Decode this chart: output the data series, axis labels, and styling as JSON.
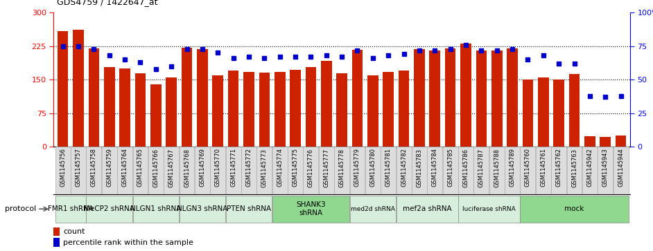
{
  "title": "GDS4759 / 1422647_at",
  "samples": [
    "GSM1145756",
    "GSM1145757",
    "GSM1145758",
    "GSM1145759",
    "GSM1145764",
    "GSM1145765",
    "GSM1145766",
    "GSM1145767",
    "GSM1145768",
    "GSM1145769",
    "GSM1145770",
    "GSM1145771",
    "GSM1145772",
    "GSM1145773",
    "GSM1145774",
    "GSM1145775",
    "GSM1145776",
    "GSM1145777",
    "GSM1145778",
    "GSM1145779",
    "GSM1145780",
    "GSM1145781",
    "GSM1145782",
    "GSM1145783",
    "GSM1145784",
    "GSM1145785",
    "GSM1145786",
    "GSM1145787",
    "GSM1145788",
    "GSM1145789",
    "GSM1145760",
    "GSM1145761",
    "GSM1145762",
    "GSM1145763",
    "GSM1145942",
    "GSM1145943",
    "GSM1145944"
  ],
  "counts": [
    258,
    262,
    220,
    178,
    175,
    165,
    140,
    155,
    222,
    218,
    160,
    170,
    167,
    166,
    167,
    172,
    178,
    192,
    165,
    217,
    160,
    168,
    170,
    218,
    216,
    220,
    230,
    215,
    215,
    220,
    150,
    155,
    150,
    163,
    23,
    22,
    25
  ],
  "percentiles": [
    75,
    75,
    73,
    68,
    65,
    63,
    58,
    60,
    73,
    73,
    70,
    66,
    67,
    66,
    67,
    67,
    67,
    68,
    67,
    72,
    66,
    68,
    69,
    72,
    72,
    73,
    76,
    72,
    72,
    73,
    65,
    68,
    62,
    62,
    38,
    37,
    38
  ],
  "groups": [
    {
      "label": "FMR1 shRNA",
      "start": 0,
      "end": 2,
      "color": "#d8eedc"
    },
    {
      "label": "MeCP2 shRNA",
      "start": 2,
      "end": 5,
      "color": "#d8eedc"
    },
    {
      "label": "NLGN1 shRNA",
      "start": 5,
      "end": 8,
      "color": "#d8eedc"
    },
    {
      "label": "NLGN3 shRNA",
      "start": 8,
      "end": 11,
      "color": "#d8eedc"
    },
    {
      "label": "PTEN shRNA",
      "start": 11,
      "end": 14,
      "color": "#d8eedc"
    },
    {
      "label": "SHANK3\nshRNA",
      "start": 14,
      "end": 19,
      "color": "#90d890"
    },
    {
      "label": "med2d shRNA",
      "start": 19,
      "end": 22,
      "color": "#d8eedc"
    },
    {
      "label": "mef2a shRNA",
      "start": 22,
      "end": 26,
      "color": "#d8eedc"
    },
    {
      "label": "luciferase shRNA",
      "start": 26,
      "end": 30,
      "color": "#d8eedc"
    },
    {
      "label": "mock",
      "start": 30,
      "end": 37,
      "color": "#90d890"
    }
  ],
  "bar_color": "#cc2200",
  "dot_color": "#0000cc",
  "ylim_left": [
    0,
    300
  ],
  "ylim_right": [
    0,
    100
  ],
  "yticks_left": [
    0,
    75,
    150,
    225,
    300
  ],
  "yticks_right": [
    0,
    25,
    50,
    75,
    100
  ],
  "ytick_labels_left": [
    "0",
    "75",
    "150",
    "225",
    "300"
  ],
  "ytick_labels_right": [
    "0",
    "25",
    "50",
    "75",
    "100%"
  ],
  "legend_count_label": "count",
  "legend_pct_label": "percentile rank within the sample",
  "protocol_label": "protocol",
  "label_bg_color": "#dddddd",
  "label_border_color": "#aaaaaa"
}
